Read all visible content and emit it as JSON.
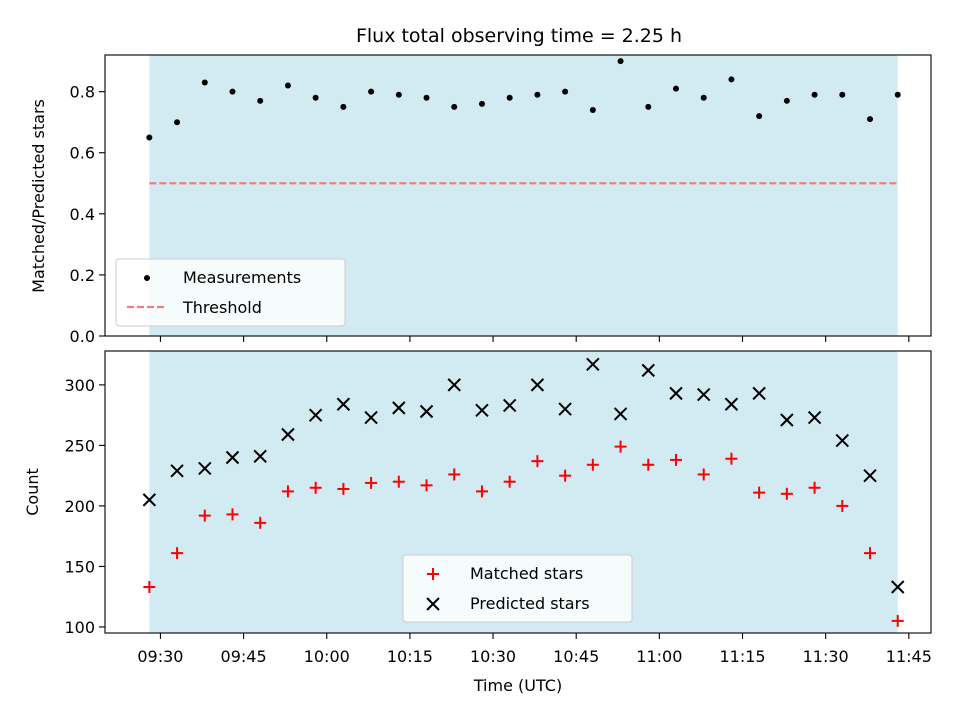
{
  "title": "Flux total observing time = 2.25 h",
  "colors": {
    "band": "#add8e6",
    "threshold": "#f08080",
    "measurement": "#000000",
    "matched": "#ff0000",
    "predicted": "#000000"
  },
  "chart_data": [
    {
      "type": "scatter",
      "panel": "top",
      "title": "Flux total observing time = 2.25 h",
      "xlabel": "",
      "ylabel": "Matched/Predicted stars",
      "ylim": [
        0,
        0.92
      ],
      "yticks": [
        "0.0",
        "0.2",
        "0.4",
        "0.6",
        "0.8"
      ],
      "ytick_values": [
        0,
        0.2,
        0.4,
        0.6,
        0.8
      ],
      "xlim": [
        "09:20",
        "11:49"
      ],
      "observing_band": [
        "09:28",
        "11:43"
      ],
      "grid": false,
      "legend_position": "lower-left",
      "series": [
        {
          "name": "Measurements",
          "x": [
            "09:28",
            "09:33",
            "09:38",
            "09:43",
            "09:48",
            "09:53",
            "09:58",
            "10:03",
            "10:08",
            "10:13",
            "10:18",
            "10:23",
            "10:28",
            "10:33",
            "10:38",
            "10:43",
            "10:48",
            "10:53",
            "10:58",
            "11:03",
            "11:08",
            "11:13",
            "11:18",
            "11:23",
            "11:28",
            "11:33",
            "11:38",
            "11:43"
          ],
          "values": [
            0.65,
            0.7,
            0.83,
            0.8,
            0.77,
            0.82,
            0.78,
            0.75,
            0.8,
            0.79,
            0.78,
            0.75,
            0.76,
            0.78,
            0.79,
            0.8,
            0.74,
            0.9,
            0.75,
            0.81,
            0.78,
            0.84,
            0.72,
            0.77,
            0.79,
            0.79,
            0.71,
            0.79
          ]
        },
        {
          "name": "Threshold",
          "x": [
            "09:28",
            "11:43"
          ],
          "values": [
            0.5,
            0.5
          ]
        }
      ]
    },
    {
      "type": "scatter",
      "panel": "bottom",
      "xlabel": "Time (UTC)",
      "ylabel": "Count",
      "ylim": [
        95,
        328
      ],
      "yticks": [
        "100",
        "150",
        "200",
        "250",
        "300"
      ],
      "ytick_values": [
        100,
        150,
        200,
        250,
        300
      ],
      "xlim": [
        "09:20",
        "11:49"
      ],
      "xticks": [
        "09:30",
        "09:45",
        "10:00",
        "10:15",
        "10:30",
        "10:45",
        "11:00",
        "11:15",
        "11:30",
        "11:45"
      ],
      "observing_band": [
        "09:28",
        "11:43"
      ],
      "grid": false,
      "legend_position": "lower-center",
      "series": [
        {
          "name": "Matched stars",
          "x": [
            "09:28",
            "09:33",
            "09:38",
            "09:43",
            "09:48",
            "09:53",
            "09:58",
            "10:03",
            "10:08",
            "10:13",
            "10:18",
            "10:23",
            "10:28",
            "10:33",
            "10:38",
            "10:43",
            "10:48",
            "10:53",
            "10:58",
            "11:03",
            "11:08",
            "11:13",
            "11:18",
            "11:23",
            "11:28",
            "11:33",
            "11:38",
            "11:43"
          ],
          "values": [
            133,
            161,
            192,
            193,
            186,
            212,
            215,
            214,
            219,
            220,
            217,
            226,
            212,
            220,
            237,
            225,
            234,
            249,
            234,
            238,
            226,
            239,
            211,
            210,
            215,
            200,
            161,
            105
          ]
        },
        {
          "name": "Predicted stars",
          "x": [
            "09:28",
            "09:33",
            "09:38",
            "09:43",
            "09:48",
            "09:53",
            "09:58",
            "10:03",
            "10:08",
            "10:13",
            "10:18",
            "10:23",
            "10:28",
            "10:33",
            "10:38",
            "10:43",
            "10:48",
            "10:53",
            "10:58",
            "11:03",
            "11:08",
            "11:13",
            "11:18",
            "11:23",
            "11:28",
            "11:33",
            "11:38",
            "11:43"
          ],
          "values": [
            205,
            229,
            231,
            240,
            241,
            259,
            275,
            284,
            273,
            281,
            278,
            300,
            279,
            283,
            300,
            280,
            317,
            276,
            312,
            293,
            292,
            284,
            293,
            271,
            273,
            254,
            225,
            133
          ]
        }
      ]
    }
  ]
}
